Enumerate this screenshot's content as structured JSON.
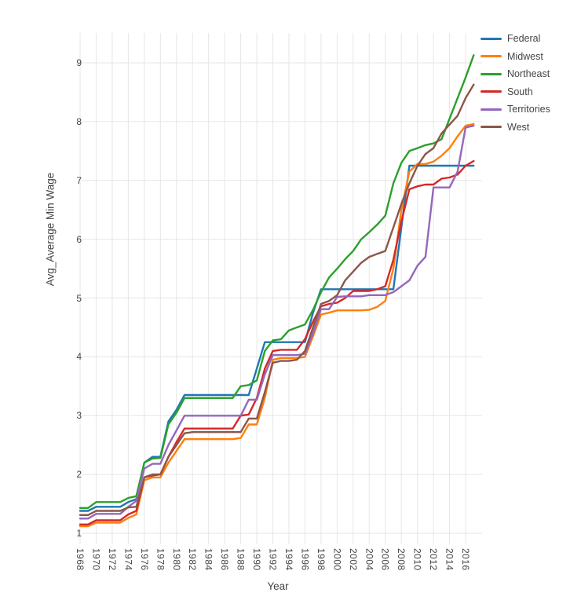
{
  "chart": {
    "title": "",
    "y_axis_title": "Avg_Average Min Wage",
    "x_axis_title": "Year"
  },
  "chart_data": {
    "type": "line",
    "title": "",
    "xlabel": "Year",
    "ylabel": "Avg_Average Min Wage",
    "grid": true,
    "legend_position": "top-right",
    "xlim": [
      1967.4,
      2018.1
    ],
    "ylim": [
      0.8,
      9.5
    ],
    "x_ticks": [
      1968,
      1970,
      1972,
      1974,
      1976,
      1978,
      1980,
      1982,
      1984,
      1986,
      1988,
      1990,
      1992,
      1994,
      1996,
      1998,
      2000,
      2002,
      2004,
      2006,
      2008,
      2010,
      2012,
      2014,
      2016
    ],
    "y_ticks": [
      1,
      2,
      3,
      4,
      5,
      6,
      7,
      8,
      9
    ],
    "grid_color": "#e6e6e6",
    "text_color": "#444444",
    "x": [
      1968,
      1969,
      1970,
      1971,
      1972,
      1973,
      1974,
      1975,
      1976,
      1977,
      1978,
      1979,
      1980,
      1981,
      1982,
      1983,
      1984,
      1985,
      1986,
      1987,
      1988,
      1989,
      1990,
      1991,
      1992,
      1993,
      1994,
      1995,
      1996,
      1997,
      1998,
      1999,
      2000,
      2001,
      2002,
      2003,
      2004,
      2005,
      2006,
      2007,
      2008,
      2009,
      2010,
      2011,
      2012,
      2013,
      2014,
      2015,
      2016,
      2017
    ],
    "series": [
      {
        "name": "Federal",
        "color": "#1f77b4",
        "values": [
          1.38,
          1.38,
          1.45,
          1.45,
          1.45,
          1.45,
          1.53,
          1.58,
          2.2,
          2.3,
          2.3,
          2.9,
          3.1,
          3.35,
          3.35,
          3.35,
          3.35,
          3.35,
          3.35,
          3.35,
          3.35,
          3.35,
          3.8,
          4.25,
          4.25,
          4.25,
          4.25,
          4.25,
          4.25,
          4.75,
          5.15,
          5.15,
          5.15,
          5.15,
          5.15,
          5.15,
          5.15,
          5.15,
          5.15,
          5.15,
          6.2,
          7.25,
          7.25,
          7.25,
          7.25,
          7.25,
          7.25,
          7.25,
          7.25,
          7.25
        ]
      },
      {
        "name": "Midwest",
        "color": "#ff7f0e",
        "values": [
          1.12,
          1.12,
          1.18,
          1.18,
          1.18,
          1.18,
          1.26,
          1.32,
          1.9,
          1.95,
          1.95,
          2.2,
          2.4,
          2.6,
          2.6,
          2.6,
          2.6,
          2.6,
          2.6,
          2.6,
          2.62,
          2.85,
          2.85,
          3.3,
          3.95,
          3.98,
          3.98,
          3.98,
          4.0,
          4.35,
          4.72,
          4.75,
          4.79,
          4.79,
          4.79,
          4.79,
          4.8,
          4.85,
          4.95,
          5.5,
          6.5,
          7.15,
          7.28,
          7.28,
          7.32,
          7.42,
          7.55,
          7.75,
          7.93,
          7.96
        ]
      },
      {
        "name": "Northeast",
        "color": "#2ca02c",
        "values": [
          1.43,
          1.43,
          1.53,
          1.53,
          1.53,
          1.53,
          1.6,
          1.63,
          2.2,
          2.27,
          2.28,
          2.85,
          3.05,
          3.3,
          3.3,
          3.3,
          3.3,
          3.3,
          3.3,
          3.3,
          3.5,
          3.52,
          3.6,
          4.1,
          4.28,
          4.3,
          4.45,
          4.5,
          4.55,
          4.8,
          5.1,
          5.35,
          5.5,
          5.66,
          5.8,
          6.0,
          6.12,
          6.25,
          6.4,
          6.95,
          7.3,
          7.5,
          7.55,
          7.6,
          7.63,
          7.7,
          8.05,
          8.4,
          8.75,
          9.13
        ]
      },
      {
        "name": "South",
        "color": "#d62728",
        "values": [
          1.15,
          1.15,
          1.22,
          1.22,
          1.22,
          1.22,
          1.32,
          1.38,
          1.95,
          1.98,
          2.0,
          2.3,
          2.55,
          2.78,
          2.78,
          2.78,
          2.78,
          2.78,
          2.78,
          2.78,
          3.0,
          3.02,
          3.3,
          3.8,
          4.1,
          4.12,
          4.12,
          4.12,
          4.3,
          4.6,
          4.86,
          4.9,
          4.92,
          5.0,
          5.12,
          5.12,
          5.12,
          5.15,
          5.2,
          5.65,
          6.3,
          6.85,
          6.9,
          6.93,
          6.93,
          7.03,
          7.05,
          7.1,
          7.25,
          7.33
        ]
      },
      {
        "name": "Territories",
        "color": "#9467bd",
        "values": [
          1.25,
          1.25,
          1.33,
          1.33,
          1.33,
          1.33,
          1.45,
          1.55,
          2.1,
          2.18,
          2.18,
          2.5,
          2.75,
          3.0,
          3.0,
          3.0,
          3.0,
          3.0,
          3.0,
          3.0,
          3.0,
          3.27,
          3.27,
          3.7,
          4.03,
          4.03,
          4.03,
          4.03,
          4.05,
          4.4,
          4.81,
          4.81,
          5.02,
          5.03,
          5.03,
          5.03,
          5.05,
          5.05,
          5.05,
          5.1,
          5.2,
          5.3,
          5.55,
          5.7,
          6.88,
          6.88,
          6.88,
          7.15,
          7.9,
          7.93
        ]
      },
      {
        "name": "West",
        "color": "#8c564b",
        "values": [
          1.31,
          1.31,
          1.38,
          1.38,
          1.38,
          1.38,
          1.44,
          1.45,
          1.95,
          2.0,
          2.0,
          2.3,
          2.5,
          2.7,
          2.72,
          2.72,
          2.72,
          2.72,
          2.72,
          2.72,
          2.72,
          2.95,
          2.95,
          3.4,
          3.9,
          3.93,
          3.93,
          3.95,
          4.1,
          4.5,
          4.9,
          4.95,
          5.05,
          5.3,
          5.45,
          5.6,
          5.7,
          5.75,
          5.8,
          6.2,
          6.6,
          6.95,
          7.25,
          7.45,
          7.55,
          7.8,
          7.95,
          8.1,
          8.4,
          8.63
        ]
      }
    ]
  }
}
